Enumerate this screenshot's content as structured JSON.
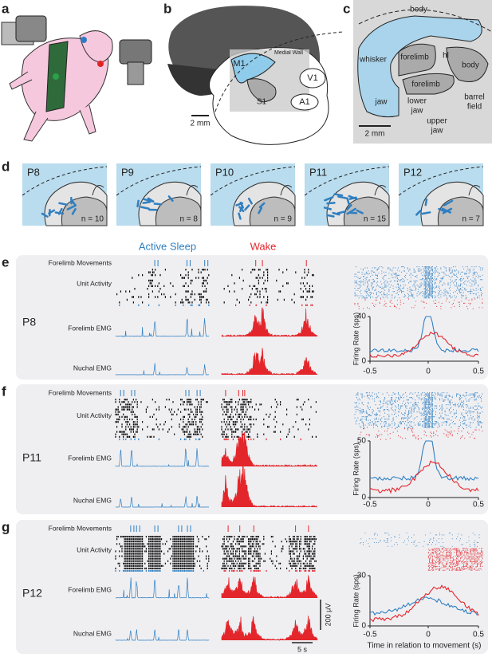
{
  "panel_labels": [
    "a",
    "b",
    "c",
    "d",
    "e",
    "f",
    "g"
  ],
  "b": {
    "labels": [
      "M1",
      "Medial Wall",
      "S1",
      "V1",
      "A1"
    ],
    "scale": "2 mm"
  },
  "c": {
    "labels": [
      "body",
      "whisker",
      "forelimb",
      "hl",
      "forelimb",
      "body",
      "jaw",
      "lower",
      "jaw",
      "upper",
      "jaw",
      "barrel",
      "field"
    ],
    "scale": "2 mm"
  },
  "d": {
    "maps": [
      {
        "age": "P8",
        "n": "n = 10"
      },
      {
        "age": "P9",
        "n": "n = 8"
      },
      {
        "age": "P10",
        "n": "n = 9"
      },
      {
        "age": "P11",
        "n": "n = 15"
      },
      {
        "age": "P12",
        "n": "n = 7"
      }
    ]
  },
  "conditions": [
    "Active Sleep",
    "Wake"
  ],
  "recordings": [
    {
      "age": "P8",
      "rows": [
        "Forelimb Movements",
        "Unit Activity",
        "Forelimb EMG",
        "Nuchal EMG"
      ],
      "y_axis": "Firing Rate (sps)",
      "yticks": [
        "40",
        "0"
      ],
      "xticks": [
        "-0.5",
        "0",
        "0.5"
      ]
    },
    {
      "age": "P11",
      "rows": [
        "Forelimb Movements",
        "Unit Activity",
        "Forelimb EMG",
        "Nuchal EMG"
      ],
      "y_axis": "Firing Rate (sps)",
      "yticks": [
        "50",
        "0"
      ],
      "xticks": [
        "-0.5",
        "0",
        "0.5"
      ]
    },
    {
      "age": "P12",
      "rows": [
        "Forelimb Movements",
        "Unit Activity",
        "Forelimb EMG",
        "Nuchal EMG"
      ],
      "y_axis": "Firing Rate (sps)",
      "yticks": [
        "30",
        "0"
      ],
      "xticks": [
        "-0.5",
        "0",
        "0.5"
      ],
      "x_axis": "Time in relation to movement (s)"
    }
  ],
  "scale_bars": [
    "200 μV",
    "5 s"
  ]
}
